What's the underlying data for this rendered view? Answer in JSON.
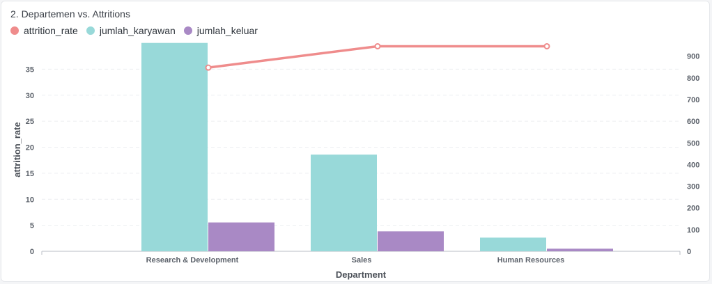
{
  "card": {
    "title": "2. Departemen vs. Attritions"
  },
  "legend": [
    {
      "label": "attrition_rate",
      "color": "#ef8c8c"
    },
    {
      "label": "jumlah_karyawan",
      "color": "#98d9d9"
    },
    {
      "label": "jumlah_keluar",
      "color": "#a989c5"
    }
  ],
  "chart_data": {
    "type": "bar",
    "title": "2. Departemen vs. Attritions",
    "xlabel": "Department",
    "ylabel": "attrition_rate",
    "categories": [
      "Research & Development",
      "Sales",
      "Human Resources"
    ],
    "y_left": {
      "ylim": [
        0,
        40
      ],
      "ticks": [
        0,
        5,
        10,
        15,
        20,
        25,
        30,
        35
      ]
    },
    "y_right": {
      "ylim": [
        0,
        960
      ],
      "ticks": [
        0,
        100,
        200,
        300,
        400,
        500,
        600,
        700,
        800,
        900
      ]
    },
    "series": [
      {
        "name": "jumlah_karyawan",
        "kind": "bar",
        "axis": "right",
        "color": "#98d9d9",
        "values": [
          961,
          446,
          63
        ]
      },
      {
        "name": "jumlah_keluar",
        "kind": "bar",
        "axis": "right",
        "color": "#a989c5",
        "values": [
          133,
          92,
          12
        ]
      },
      {
        "name": "attrition_rate",
        "kind": "line",
        "axis": "left",
        "color": "#ef8c8c",
        "values": [
          35.3,
          39.4,
          39.4
        ]
      }
    ],
    "grid": true,
    "legend_position": "top-left"
  }
}
